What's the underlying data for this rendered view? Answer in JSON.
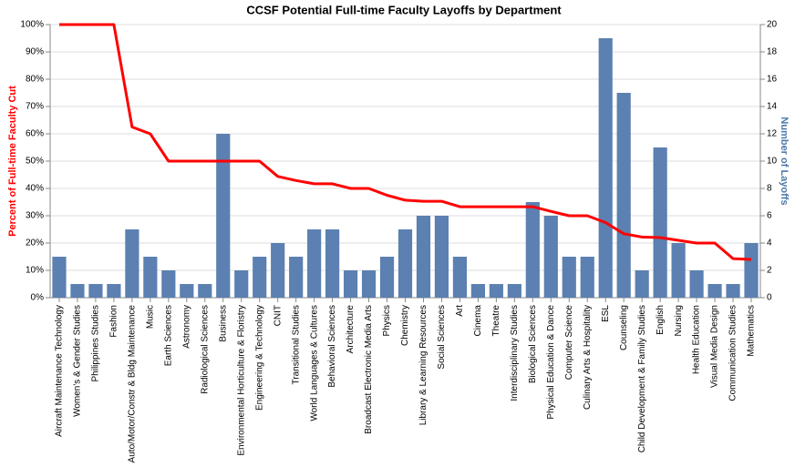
{
  "chart_data": {
    "type": "combo",
    "title": "CCSF Potential Full-time Faculty Layoffs by Department",
    "y_label": "Percent of Full-time Faculty Cut",
    "y2_label": "Number of Layoffs",
    "categories": [
      "Aircraft Maintenance Technology",
      "Women's & Gender Studies",
      "Philippines Studies",
      "Fashion",
      "Auto/Motor/Constr & Bldg Maintenance",
      "Music",
      "Earth Sciences",
      "Astronomy",
      "Radiological Sciences",
      "Business",
      "Environmental Horticulture & Floristry",
      "Engineering & Technology",
      "CNIT",
      "Transitional Studies",
      "World Languages & Cultures",
      "Behavioral Sciences",
      "Architecture",
      "Broadcast Electronic Media Arts",
      "Physics",
      "Chemistry",
      "Library & Learning Resources",
      "Social Sciences",
      "Art",
      "Cinema",
      "Theatre",
      "Interdisciplinary Studies",
      "Biological Sciences",
      "Physical Education & Dance",
      "Computer Science",
      "Culinary Arts & Hospitality",
      "ESL",
      "Counseling",
      "Child Development & Family Studies",
      "English",
      "Nursing",
      "Health Education",
      "Visual Media Design",
      "Communication Studies",
      "Mathematics"
    ],
    "series": [
      {
        "name": "Number of Layoffs",
        "type": "bar",
        "axis": "y2",
        "color": "#5b80b1",
        "values": [
          3,
          1,
          1,
          1,
          5,
          3,
          2,
          1,
          1,
          12,
          2,
          3,
          4,
          3,
          5,
          5,
          2,
          2,
          3,
          5,
          6,
          6,
          3,
          1,
          1,
          1,
          7,
          6,
          3,
          3,
          19,
          15,
          2,
          11,
          4,
          2,
          1,
          1,
          4
        ]
      },
      {
        "name": "Percent of Full-time Faculty Cut",
        "type": "line",
        "axis": "y",
        "color": "#ff0000",
        "values": [
          100,
          100,
          100,
          100,
          62.5,
          60,
          50,
          50,
          50,
          50,
          50,
          50,
          44.4,
          42.9,
          41.7,
          41.7,
          40,
          40,
          37.5,
          35.7,
          35.3,
          35.3,
          33.3,
          33.3,
          33.3,
          33.3,
          33.3,
          31.6,
          30,
          30,
          27.5,
          23.4,
          22.2,
          22,
          21,
          20,
          20,
          14.3,
          14
        ]
      }
    ],
    "ylim": [
      0,
      100
    ],
    "yticks": [
      {
        "value": 0,
        "label": "0%"
      },
      {
        "value": 10,
        "label": "10%"
      },
      {
        "value": 20,
        "label": "20%"
      },
      {
        "value": 30,
        "label": "30%"
      },
      {
        "value": 40,
        "label": "40%"
      },
      {
        "value": 50,
        "label": "50%"
      },
      {
        "value": 60,
        "label": "60%"
      },
      {
        "value": 70,
        "label": "70%"
      },
      {
        "value": 80,
        "label": "80%"
      },
      {
        "value": 90,
        "label": "90%"
      },
      {
        "value": 100,
        "label": "100%"
      }
    ],
    "y2lim": [
      0,
      20
    ],
    "y2ticks": [
      0,
      2,
      4,
      6,
      8,
      10,
      12,
      14,
      16,
      18,
      20
    ],
    "grid": true,
    "y_label_color": "#ff0000",
    "y2_label_color": "#4c78a8"
  }
}
